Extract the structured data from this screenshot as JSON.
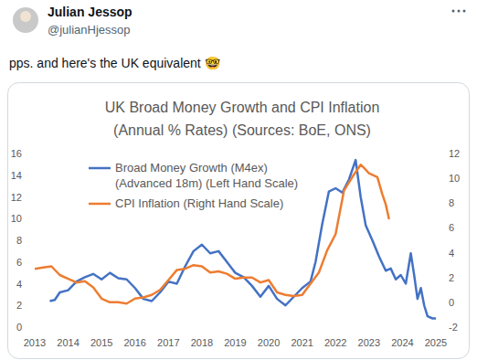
{
  "post": {
    "author": "Julian Jessop",
    "handle": "@julianHjessop",
    "text": "pps. and here's the UK equivalent 🤓"
  },
  "chart_data": {
    "type": "line",
    "title": "UK Broad Money Growth and CPI Inflation",
    "subtitle": "(Annual % Rates) (Sources: BoE, ONS)",
    "xlim": [
      2013,
      2025
    ],
    "xticks": [
      2013,
      2014,
      2015,
      2016,
      2017,
      2018,
      2019,
      2020,
      2021,
      2022,
      2023,
      2024,
      2025
    ],
    "ylim": [
      0,
      16
    ],
    "yticks": [
      0,
      2,
      4,
      6,
      8,
      10,
      12,
      14,
      16
    ],
    "y2lim": [
      -2,
      12
    ],
    "y2ticks": [
      -2,
      0,
      2,
      4,
      6,
      8,
      10,
      12
    ],
    "grid": false,
    "legend": "top-left",
    "series": [
      {
        "name": "Broad Money Growth (M4ex) (Advanced 18m) (Left Hand Scale)",
        "color": "#4472c4",
        "axis": "y",
        "x": [
          2013.45,
          2013.6,
          2013.75,
          2014.0,
          2014.25,
          2014.5,
          2014.75,
          2015.0,
          2015.25,
          2015.5,
          2015.75,
          2016.0,
          2016.25,
          2016.5,
          2016.75,
          2017.0,
          2017.25,
          2017.5,
          2017.75,
          2018.0,
          2018.25,
          2018.5,
          2018.75,
          2019.0,
          2019.25,
          2019.5,
          2019.75,
          2020.0,
          2020.25,
          2020.5,
          2020.75,
          2021.0,
          2021.25,
          2021.4,
          2021.6,
          2021.8,
          2022.0,
          2022.2,
          2022.4,
          2022.6,
          2022.75,
          2022.9,
          2023.1,
          2023.3,
          2023.5,
          2023.65,
          2023.8,
          2023.95,
          2024.1,
          2024.25,
          2024.35,
          2024.45,
          2024.55,
          2024.65,
          2024.75,
          2024.9,
          2025.0
        ],
        "values": [
          2.4,
          2.5,
          3.2,
          3.4,
          4.2,
          4.6,
          4.9,
          4.4,
          5.0,
          4.5,
          4.4,
          3.6,
          2.6,
          2.4,
          3.2,
          4.2,
          4.0,
          5.6,
          7.0,
          7.6,
          6.8,
          7.0,
          6.0,
          5.0,
          4.6,
          3.8,
          2.8,
          3.8,
          2.6,
          2.0,
          2.8,
          3.6,
          4.2,
          6.0,
          9.5,
          12.5,
          12.8,
          12.4,
          13.6,
          15.4,
          12.0,
          9.4,
          8.0,
          6.5,
          5.2,
          5.4,
          4.4,
          4.8,
          4.0,
          6.8,
          4.8,
          2.6,
          3.6,
          2.0,
          1.0,
          0.8,
          0.8
        ]
      },
      {
        "name": "CPI Inflation (Right Hand Scale)",
        "color": "#ed7d31",
        "axis": "y2",
        "x": [
          2013.0,
          2013.25,
          2013.5,
          2013.75,
          2014.0,
          2014.25,
          2014.5,
          2014.75,
          2015.0,
          2015.25,
          2015.5,
          2015.75,
          2016.0,
          2016.25,
          2016.5,
          2016.75,
          2017.0,
          2017.25,
          2017.5,
          2017.75,
          2018.0,
          2018.25,
          2018.5,
          2018.75,
          2019.0,
          2019.25,
          2019.5,
          2019.75,
          2020.0,
          2020.25,
          2020.5,
          2020.75,
          2021.0,
          2021.25,
          2021.5,
          2021.75,
          2022.0,
          2022.25,
          2022.5,
          2022.75,
          2022.9,
          2023.0,
          2023.25,
          2023.4,
          2023.5,
          2023.6
        ],
        "values": [
          2.7,
          2.8,
          2.9,
          2.2,
          1.9,
          1.6,
          1.7,
          1.2,
          0.3,
          0.0,
          0.0,
          -0.1,
          0.3,
          0.4,
          0.6,
          1.0,
          1.8,
          2.6,
          2.7,
          3.0,
          2.9,
          2.4,
          2.5,
          2.3,
          1.9,
          2.0,
          2.0,
          1.6,
          1.8,
          0.8,
          0.6,
          0.5,
          0.6,
          1.5,
          2.4,
          4.2,
          5.5,
          9.0,
          10.1,
          11.1,
          10.7,
          10.4,
          10.1,
          8.7,
          7.9,
          6.7
        ]
      }
    ]
  }
}
